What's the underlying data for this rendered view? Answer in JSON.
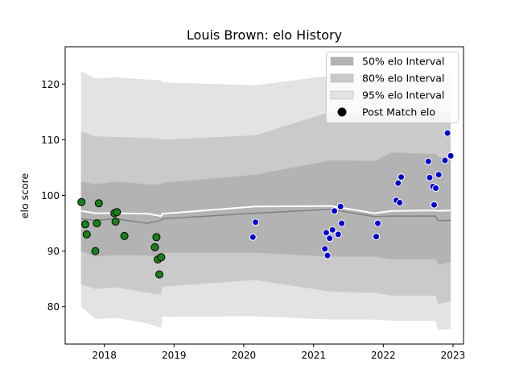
{
  "chart_data": {
    "type": "line",
    "title": "Louis Brown: elo History",
    "xlabel": "",
    "ylabel": "elo score",
    "xlim": [
      "2017-06-10",
      "2023-02-25"
    ],
    "ylim": [
      73.3,
      126.7
    ],
    "x_ticks": [
      "2018",
      "2019",
      "2020",
      "2021",
      "2022",
      "2023"
    ],
    "x_tick_dates": [
      "2018-01-01",
      "2019-01-01",
      "2020-01-01",
      "2021-01-01",
      "2022-01-01",
      "2023-01-01"
    ],
    "y_ticks": [
      80,
      90,
      100,
      110,
      120
    ],
    "grid": false,
    "legend_location": "upper right",
    "legend": [
      {
        "label": "50% elo Interval",
        "kind": "band"
      },
      {
        "label": "80% elo Interval",
        "kind": "band"
      },
      {
        "label": "95% elo Interval",
        "kind": "band"
      },
      {
        "label": "Post Match elo",
        "kind": "marker"
      }
    ],
    "colors": {
      "band50": "#b3b3b3",
      "band80": "#cacaca",
      "band95": "#e3e3e3",
      "mean_line": "#ffffff",
      "median_line": "#808080",
      "points_early": "#1a7f1a",
      "points_late": "#0000cc"
    },
    "band_x": [
      "2017-09-01",
      "2017-11-15",
      "2018-03-01",
      "2018-08-15",
      "2018-10-25",
      "2018-11-01",
      "2020-03-01",
      "2021-04-01",
      "2021-11-15",
      "2022-02-15",
      "2022-08-15",
      "2022-10-01",
      "2022-10-15",
      "2022-12-20"
    ],
    "band95": {
      "upper": [
        122.3,
        121.0,
        121.2,
        120.8,
        120.7,
        120.3,
        119.8,
        121.5,
        121.0,
        121.5,
        121.5,
        121.5,
        121.5,
        121.5
      ],
      "lower": [
        80.0,
        77.8,
        78.0,
        77.0,
        76.2,
        78.2,
        78.3,
        77.7,
        77.7,
        77.5,
        77.5,
        77.5,
        75.8,
        76.0
      ]
    },
    "band80": {
      "upper": [
        111.5,
        110.6,
        110.5,
        110.3,
        110.2,
        110.0,
        110.8,
        115.0,
        114.5,
        115.6,
        115.8,
        115.8,
        114.8,
        115.0
      ],
      "lower": [
        84.0,
        83.2,
        83.5,
        82.5,
        82.2,
        83.6,
        84.8,
        82.7,
        82.5,
        82.0,
        82.0,
        82.0,
        80.5,
        81.0
      ]
    },
    "band50": {
      "upper": [
        102.5,
        102.0,
        102.5,
        102.0,
        102.0,
        102.3,
        103.7,
        106.3,
        106.2,
        107.7,
        107.5,
        107.5,
        106.8,
        107.0
      ],
      "lower": [
        90.0,
        89.0,
        89.3,
        89.2,
        89.0,
        89.7,
        89.7,
        89.0,
        89.0,
        88.5,
        88.5,
        88.5,
        87.5,
        88.0
      ]
    },
    "mean_line": [
      97.2,
      96.8,
      96.8,
      96.7,
      96.3,
      96.7,
      98.0,
      98.1,
      96.8,
      97.2,
      97.3,
      97.3,
      97.2,
      97.3
    ],
    "median_line": [
      95.8,
      95.5,
      95.8,
      95.0,
      95.5,
      95.8,
      96.8,
      97.5,
      96.2,
      96.3,
      96.3,
      96.3,
      95.5,
      95.5
    ],
    "series": [
      {
        "name": "Post Match elo",
        "x": [
          "2017-09-03",
          "2017-09-23",
          "2017-10-01",
          "2017-11-15",
          "2017-11-23",
          "2017-12-03",
          "2018-02-23",
          "2018-03-01",
          "2018-03-08",
          "2018-04-16",
          "2018-09-23",
          "2018-10-01",
          "2018-10-08",
          "2018-10-16",
          "2018-10-26",
          "2020-02-18",
          "2020-03-03",
          "2021-03-01",
          "2021-03-08",
          "2021-03-15",
          "2021-03-26",
          "2021-04-10",
          "2021-04-20",
          "2021-05-10",
          "2021-05-22",
          "2021-05-28",
          "2021-11-25",
          "2021-12-03",
          "2022-03-10",
          "2022-03-20",
          "2022-03-28",
          "2022-04-05",
          "2022-08-25",
          "2022-09-01",
          "2022-09-18",
          "2022-09-24",
          "2022-10-03",
          "2022-10-18",
          "2022-11-20",
          "2022-12-03"
        ],
        "y": [
          98.8,
          94.8,
          93.0,
          90.0,
          95.0,
          98.6,
          96.8,
          95.3,
          97.0,
          92.7,
          90.7,
          92.5,
          88.5,
          85.8,
          88.9,
          92.5,
          95.2,
          90.4,
          93.3,
          89.2,
          92.3,
          93.8,
          97.2,
          93.0,
          98.0,
          95.0,
          92.6,
          95.0,
          99.1,
          102.2,
          98.7,
          103.3,
          106.1,
          103.2,
          101.6,
          98.3,
          101.3,
          103.7,
          106.3,
          111.2
        ],
        "era": [
          "early",
          "early",
          "early",
          "early",
          "early",
          "early",
          "early",
          "early",
          "early",
          "early",
          "early",
          "early",
          "early",
          "early",
          "early",
          "late",
          "late",
          "late",
          "late",
          "late",
          "late",
          "late",
          "late",
          "late",
          "late",
          "late",
          "late",
          "late",
          "late",
          "late",
          "late",
          "late",
          "late",
          "late",
          "late",
          "late",
          "late",
          "late",
          "late",
          "late"
        ]
      }
    ],
    "extra_points": {
      "x": [
        "2022-12-20"
      ],
      "y": [
        107.1
      ]
    }
  }
}
